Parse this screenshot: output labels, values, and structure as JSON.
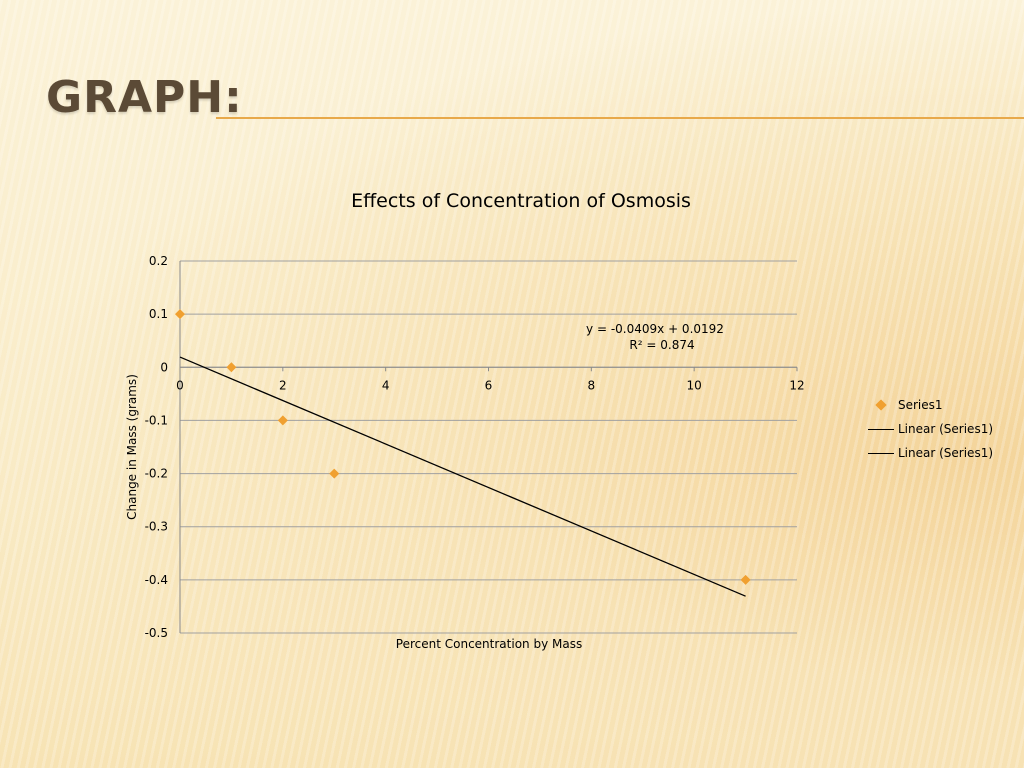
{
  "slide": {
    "title": "GRAPH:"
  },
  "colors": {
    "marker": "#f0a030",
    "trendline": "#000000",
    "gridline": "#a0a0a0",
    "title_rule": "#e8a94a"
  },
  "chart_data": {
    "type": "scatter",
    "title": "Effects of Concentration of Osmosis",
    "xlabel": "Percent Concentration by Mass",
    "ylabel": "Change in Mass (grams)",
    "xlim": [
      0,
      12
    ],
    "ylim": [
      -0.5,
      0.2
    ],
    "x_ticks": [
      0,
      2,
      4,
      6,
      8,
      10,
      12
    ],
    "y_ticks": [
      0.2,
      0.1,
      0,
      -0.1,
      -0.2,
      -0.3,
      -0.4,
      -0.5
    ],
    "y_tick_labels": [
      "0.2",
      "0.1",
      "0",
      "-0.1",
      "-0.2",
      "-0.3",
      "-0.4",
      "-0.5"
    ],
    "grid": "horizontal",
    "legend_position": "right",
    "series": [
      {
        "name": "Series1",
        "marker": "diamond",
        "points": [
          {
            "x": 0,
            "y": 0.1
          },
          {
            "x": 1,
            "y": 0
          },
          {
            "x": 2,
            "y": -0.1
          },
          {
            "x": 3,
            "y": -0.2
          },
          {
            "x": 11,
            "y": -0.4
          }
        ]
      }
    ],
    "trendline": {
      "type": "linear",
      "slope": -0.0409,
      "intercept": 0.0192,
      "x_range": [
        0,
        11
      ],
      "equation_label": "y = -0.0409x + 0.0192",
      "r2_label": "R² = 0.874"
    },
    "legend": [
      "Series1",
      "Linear (Series1)",
      "Linear (Series1)"
    ]
  }
}
